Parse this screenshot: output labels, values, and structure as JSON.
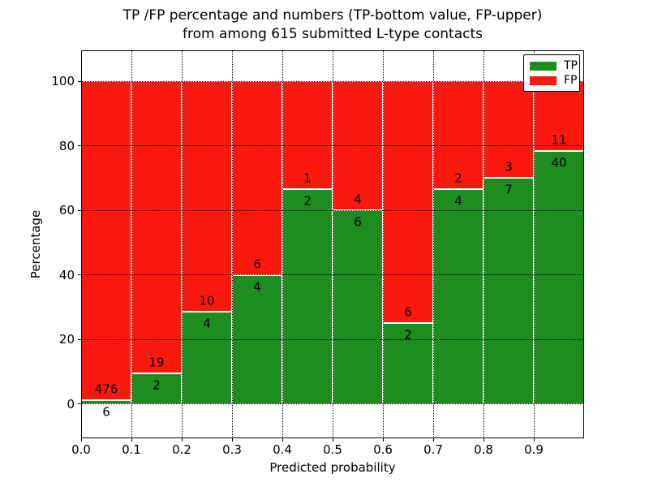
{
  "chart_data": {
    "type": "bar",
    "subtype": "stacked-100-percent-histogram",
    "title": "TP /FP percentage and numbers (TP-bottom value, FP-upper) from among 615 submitted L-type contacts",
    "title_lines": [
      "TP /FP percentage and numbers (TP-bottom value, FP-upper)",
      "from among 615 submitted L-type contacts"
    ],
    "xlabel": "Predicted probability",
    "ylabel": "Percentage",
    "x_tick_labels": [
      "0.0",
      "0.1",
      "0.2",
      "0.3",
      "0.4",
      "0.5",
      "0.6",
      "0.7",
      "0.8",
      "0.9"
    ],
    "y_ticks": [
      0,
      20,
      40,
      60,
      80,
      100
    ],
    "y_tick_labels": [
      "0",
      "20",
      "40",
      "60",
      "80",
      "100"
    ],
    "xlim": [
      0.0,
      1.0
    ],
    "ylim": [
      -10.6,
      109.6
    ],
    "grid": {
      "linestyle": "dotted",
      "color": "#000000",
      "drawn_over_bars": true
    },
    "bar_edge_color": "#ffffff",
    "total_submitted": 615,
    "legend": {
      "position": "upper-right",
      "entries": [
        {
          "label": "TP",
          "color": "#1e8c1e"
        },
        {
          "label": "FP",
          "color": "#f9190f"
        }
      ]
    },
    "series": [
      {
        "name": "TP",
        "counts": [
          6,
          2,
          4,
          4,
          2,
          6,
          2,
          4,
          7,
          40
        ]
      },
      {
        "name": "FP",
        "counts": [
          476,
          19,
          10,
          6,
          1,
          4,
          6,
          2,
          3,
          11
        ]
      }
    ],
    "bins": [
      {
        "x0": 0.0,
        "x1": 0.1,
        "tp": 6,
        "fp": 476,
        "tp_pct": 1.24,
        "fp_pct": 98.76
      },
      {
        "x0": 0.1,
        "x1": 0.2,
        "tp": 2,
        "fp": 19,
        "tp_pct": 9.52,
        "fp_pct": 90.48
      },
      {
        "x0": 0.2,
        "x1": 0.3,
        "tp": 4,
        "fp": 10,
        "tp_pct": 28.57,
        "fp_pct": 71.43
      },
      {
        "x0": 0.3,
        "x1": 0.4,
        "tp": 4,
        "fp": 6,
        "tp_pct": 40.0,
        "fp_pct": 60.0
      },
      {
        "x0": 0.4,
        "x1": 0.5,
        "tp": 2,
        "fp": 1,
        "tp_pct": 66.67,
        "fp_pct": 33.33
      },
      {
        "x0": 0.5,
        "x1": 0.6,
        "tp": 6,
        "fp": 4,
        "tp_pct": 60.0,
        "fp_pct": 40.0
      },
      {
        "x0": 0.6,
        "x1": 0.7,
        "tp": 2,
        "fp": 6,
        "tp_pct": 25.0,
        "fp_pct": 75.0
      },
      {
        "x0": 0.7,
        "x1": 0.8,
        "tp": 4,
        "fp": 2,
        "tp_pct": 66.67,
        "fp_pct": 33.33
      },
      {
        "x0": 0.8,
        "x1": 0.9,
        "tp": 7,
        "fp": 3,
        "tp_pct": 70.0,
        "fp_pct": 30.0
      },
      {
        "x0": 0.9,
        "x1": 1.0,
        "tp": 40,
        "fp": 11,
        "tp_pct": 78.43,
        "fp_pct": 21.57
      }
    ]
  }
}
